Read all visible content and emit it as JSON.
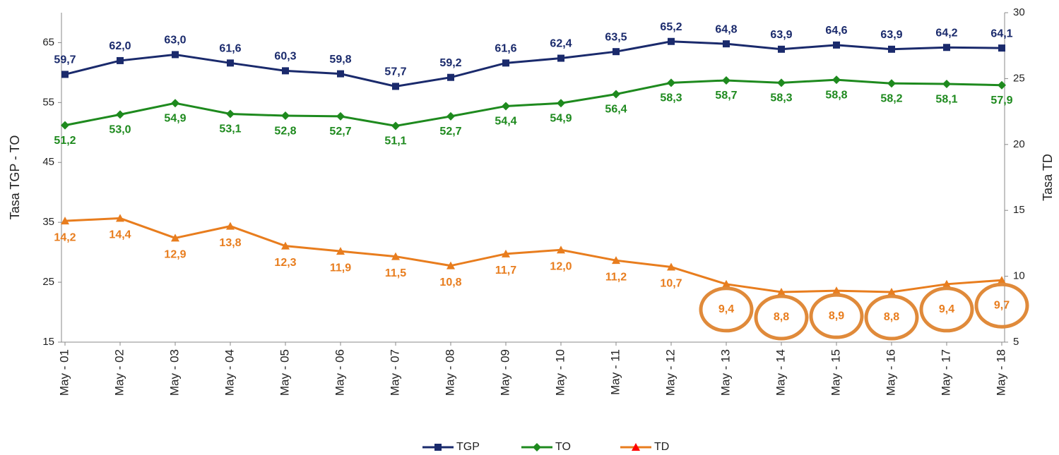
{
  "chart_data": {
    "type": "line",
    "categories": [
      "May - 01",
      "May - 02",
      "May - 03",
      "May - 04",
      "May - 05",
      "May - 06",
      "May - 07",
      "May - 08",
      "May - 09",
      "May - 10",
      "May - 11",
      "May - 12",
      "May - 13",
      "May - 14",
      "May - 15",
      "May - 16",
      "May - 17",
      "May - 18"
    ],
    "y_label": "Tasa TGP - TO",
    "y2_label": "Tasa TD",
    "ylim": [
      15,
      70
    ],
    "yticks": [
      15,
      25,
      35,
      45,
      55,
      65
    ],
    "y2lim": [
      5,
      30
    ],
    "y2ticks": [
      5,
      10,
      15,
      20,
      25,
      30
    ],
    "legend": "bottom",
    "series": [
      {
        "name": "TGP",
        "color": "#1a2a6c",
        "marker_color": "#1a2a6c",
        "marker": "square",
        "values": [
          59.7,
          62.0,
          63.0,
          61.6,
          60.3,
          59.8,
          57.7,
          59.2,
          61.6,
          62.4,
          63.5,
          65.2,
          64.8,
          63.9,
          64.6,
          63.9,
          64.2,
          64.1
        ],
        "value_labels": [
          "59,7",
          "62,0",
          "63,0",
          "61,6",
          "60,3",
          "59,8",
          "57,7",
          "59,2",
          "61,6",
          "62,4",
          "63,5",
          "65,2",
          "64,8",
          "63,9",
          "64,6",
          "63,9",
          "64,2",
          "64,1"
        ]
      },
      {
        "name": "TO",
        "color": "#1e8a1e",
        "marker_color": "#1e8a1e",
        "marker": "diamond",
        "values": [
          51.2,
          53.0,
          54.9,
          53.1,
          52.8,
          52.7,
          51.1,
          52.7,
          54.4,
          54.9,
          56.4,
          58.3,
          58.7,
          58.3,
          58.8,
          58.2,
          58.1,
          57.9
        ],
        "value_labels": [
          "51,2",
          "53,0",
          "54,9",
          "53,1",
          "52,8",
          "52,7",
          "51,1",
          "52,7",
          "54,4",
          "54,9",
          "56,4",
          "58,3",
          "58,7",
          "58,3",
          "58,8",
          "58,2",
          "58,1",
          "57,9"
        ]
      },
      {
        "name": "TD",
        "color": "#e87d1e",
        "marker_color": "#ff0000",
        "marker": "triangle",
        "axis": "y2",
        "values": [
          14.2,
          14.4,
          12.9,
          13.8,
          12.3,
          11.9,
          11.5,
          10.8,
          11.7,
          12.0,
          11.2,
          10.7,
          9.4,
          8.8,
          8.9,
          8.8,
          9.4,
          9.7
        ],
        "value_labels": [
          "14,2",
          "14,4",
          "12,9",
          "13,8",
          "12,3",
          "11,9",
          "11,5",
          "10,8",
          "11,7",
          "12,0",
          "11,2",
          "10,7",
          "9,4",
          "8,8",
          "8,9",
          "8,8",
          "9,4",
          "9,7"
        ]
      }
    ]
  }
}
